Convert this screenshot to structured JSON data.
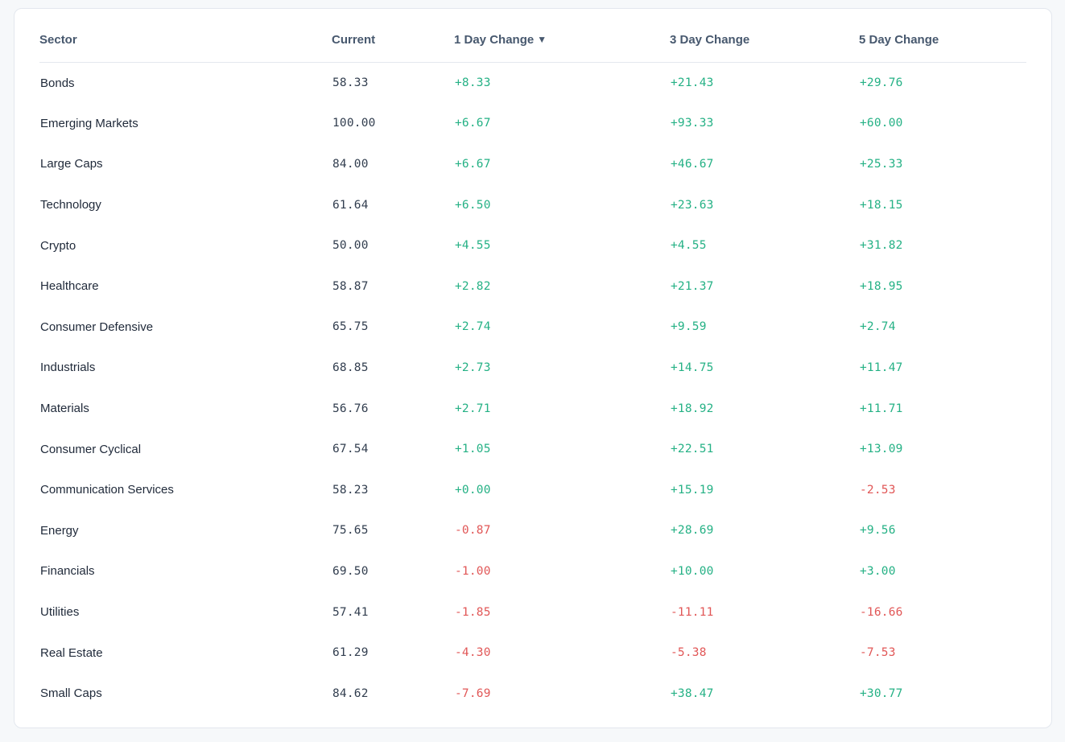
{
  "table": {
    "columns": [
      {
        "key": "sector",
        "label": "Sector"
      },
      {
        "key": "current",
        "label": "Current"
      },
      {
        "key": "d1",
        "label": "1 Day Change",
        "sort_indicator": "▼",
        "sorted": "desc"
      },
      {
        "key": "d3",
        "label": "3 Day Change"
      },
      {
        "key": "d5",
        "label": "5 Day Change"
      }
    ],
    "row_keys": [
      "sector",
      "current",
      "d1",
      "d3",
      "d5"
    ],
    "cell_names": [
      "sector-cell",
      "current-cell",
      "change-1d-cell",
      "change-3d-cell",
      "change-5d-cell"
    ],
    "rows": [
      {
        "sector": "Bonds",
        "current": "58.33",
        "d1": "+8.33",
        "d3": "+21.43",
        "d5": "+29.76"
      },
      {
        "sector": "Emerging Markets",
        "current": "100.00",
        "d1": "+6.67",
        "d3": "+93.33",
        "d5": "+60.00"
      },
      {
        "sector": "Large Caps",
        "current": "84.00",
        "d1": "+6.67",
        "d3": "+46.67",
        "d5": "+25.33"
      },
      {
        "sector": "Technology",
        "current": "61.64",
        "d1": "+6.50",
        "d3": "+23.63",
        "d5": "+18.15"
      },
      {
        "sector": "Crypto",
        "current": "50.00",
        "d1": "+4.55",
        "d3": "+4.55",
        "d5": "+31.82"
      },
      {
        "sector": "Healthcare",
        "current": "58.87",
        "d1": "+2.82",
        "d3": "+21.37",
        "d5": "+18.95"
      },
      {
        "sector": "Consumer Defensive",
        "current": "65.75",
        "d1": "+2.74",
        "d3": "+9.59",
        "d5": "+2.74"
      },
      {
        "sector": "Industrials",
        "current": "68.85",
        "d1": "+2.73",
        "d3": "+14.75",
        "d5": "+11.47"
      },
      {
        "sector": "Materials",
        "current": "56.76",
        "d1": "+2.71",
        "d3": "+18.92",
        "d5": "+11.71"
      },
      {
        "sector": "Consumer Cyclical",
        "current": "67.54",
        "d1": "+1.05",
        "d3": "+22.51",
        "d5": "+13.09"
      },
      {
        "sector": "Communication Services",
        "current": "58.23",
        "d1": "+0.00",
        "d3": "+15.19",
        "d5": "-2.53"
      },
      {
        "sector": "Energy",
        "current": "75.65",
        "d1": "-0.87",
        "d3": "+28.69",
        "d5": "+9.56"
      },
      {
        "sector": "Financials",
        "current": "69.50",
        "d1": "-1.00",
        "d3": "+10.00",
        "d5": "+3.00"
      },
      {
        "sector": "Utilities",
        "current": "57.41",
        "d1": "-1.85",
        "d3": "-11.11",
        "d5": "-16.66"
      },
      {
        "sector": "Real Estate",
        "current": "61.29",
        "d1": "-4.30",
        "d3": "-5.38",
        "d5": "-7.53"
      },
      {
        "sector": "Small Caps",
        "current": "84.62",
        "d1": "-7.69",
        "d3": "+38.47",
        "d5": "+30.77"
      }
    ]
  },
  "colors": {
    "positive": "#25b185",
    "negative": "#e15757",
    "header_text": "#47586e",
    "card_background": "#ffffff",
    "page_background": "#f6f8fa"
  }
}
